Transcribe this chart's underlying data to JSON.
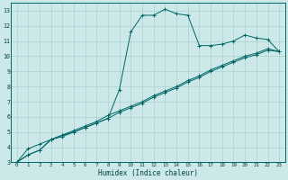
{
  "bg_color": "#cce8e8",
  "grid_color": "#aad0d0",
  "line_color": "#006666",
  "xlabel": "Humidex (Indice chaleur)",
  "xlim": [
    -0.5,
    23.5
  ],
  "ylim": [
    3,
    13.5
  ],
  "xtick_vals": [
    0,
    1,
    2,
    3,
    4,
    5,
    6,
    7,
    8,
    9,
    10,
    11,
    12,
    13,
    14,
    15,
    16,
    17,
    18,
    19,
    20,
    21,
    22,
    23
  ],
  "ytick_vals": [
    3,
    4,
    5,
    6,
    7,
    8,
    9,
    10,
    11,
    12,
    13
  ],
  "series_peak": {
    "x": [
      0,
      1,
      2,
      3,
      4,
      5,
      6,
      7,
      8,
      9,
      10,
      11,
      12,
      13,
      14,
      15,
      16,
      17,
      18,
      19,
      20,
      21,
      22,
      23
    ],
    "y": [
      3.0,
      3.9,
      4.2,
      4.5,
      4.7,
      5.0,
      5.3,
      5.6,
      5.9,
      7.8,
      11.6,
      12.7,
      12.7,
      13.1,
      12.8,
      12.7,
      10.7,
      10.7,
      10.8,
      11.0,
      11.4,
      11.2,
      11.1,
      10.3
    ]
  },
  "series_lin1": {
    "x": [
      0,
      1,
      2,
      3,
      4,
      5,
      6,
      7,
      8,
      9,
      10,
      11,
      12,
      13,
      14,
      15,
      16,
      17,
      18,
      19,
      20,
      21,
      22,
      23
    ],
    "y": [
      3.0,
      3.5,
      3.8,
      4.5,
      4.8,
      5.0,
      5.3,
      5.6,
      5.9,
      6.3,
      6.6,
      6.9,
      7.3,
      7.6,
      7.9,
      8.3,
      8.6,
      9.0,
      9.3,
      9.6,
      9.9,
      10.1,
      10.4,
      10.3
    ]
  },
  "series_lin2": {
    "x": [
      0,
      1,
      2,
      3,
      4,
      5,
      6,
      7,
      8,
      9,
      10,
      11,
      12,
      13,
      14,
      15,
      16,
      17,
      18,
      19,
      20,
      21,
      22,
      23
    ],
    "y": [
      3.0,
      3.5,
      3.8,
      4.5,
      4.8,
      5.1,
      5.4,
      5.7,
      6.1,
      6.4,
      6.7,
      7.0,
      7.4,
      7.7,
      8.0,
      8.4,
      8.7,
      9.1,
      9.4,
      9.7,
      10.0,
      10.2,
      10.5,
      10.3
    ]
  }
}
